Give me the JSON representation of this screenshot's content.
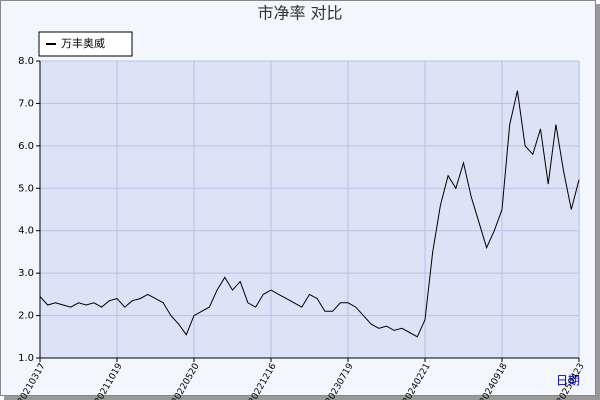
{
  "chart_data": {
    "type": "line",
    "title": "市净率 对比",
    "x_label": "日期",
    "categories": [
      "20210317",
      null,
      null,
      null,
      null,
      null,
      null,
      null,
      null,
      null,
      "20211019",
      null,
      null,
      null,
      null,
      null,
      null,
      null,
      null,
      null,
      "20220520",
      null,
      null,
      null,
      null,
      null,
      null,
      null,
      null,
      null,
      "20221216",
      null,
      null,
      null,
      null,
      null,
      null,
      null,
      null,
      null,
      "20230719",
      null,
      null,
      null,
      null,
      null,
      null,
      null,
      null,
      null,
      "20240221",
      null,
      null,
      null,
      null,
      null,
      null,
      null,
      null,
      null,
      "20240918",
      null,
      null,
      null,
      null,
      null,
      null,
      null,
      null,
      null,
      "20250423"
    ],
    "series": [
      {
        "name": "万丰奥威",
        "color": "#000000",
        "values": [
          2.45,
          2.25,
          2.3,
          2.25,
          2.2,
          2.3,
          2.25,
          2.3,
          2.2,
          2.35,
          2.4,
          2.2,
          2.35,
          2.4,
          2.5,
          2.4,
          2.3,
          2.0,
          1.8,
          1.55,
          2.0,
          2.1,
          2.2,
          2.6,
          2.9,
          2.6,
          2.8,
          2.3,
          2.2,
          2.5,
          2.6,
          2.5,
          2.4,
          2.3,
          2.2,
          2.5,
          2.4,
          2.1,
          2.1,
          2.3,
          2.3,
          2.2,
          2.0,
          1.8,
          1.7,
          1.75,
          1.65,
          1.7,
          1.6,
          1.5,
          1.9,
          3.5,
          4.6,
          5.3,
          5.0,
          5.6,
          4.8,
          4.2,
          3.6,
          4.0,
          4.5,
          6.5,
          7.3,
          6.0,
          5.8,
          6.4,
          5.1,
          6.5,
          5.4,
          4.5,
          5.2
        ]
      }
    ],
    "ylim": [
      1,
      8
    ],
    "yticks": [
      {
        "value": 1,
        "label": "1.0"
      },
      {
        "value": 2,
        "label": "2.0"
      },
      {
        "value": 3,
        "label": "3.0"
      },
      {
        "value": 4,
        "label": "4.0"
      },
      {
        "value": 5,
        "label": "5.0"
      },
      {
        "value": 6,
        "label": "6.0"
      },
      {
        "value": 7,
        "label": "7.0"
      },
      {
        "value": 8,
        "label": "8.0"
      }
    ],
    "grid": true,
    "legend": "top-left"
  }
}
